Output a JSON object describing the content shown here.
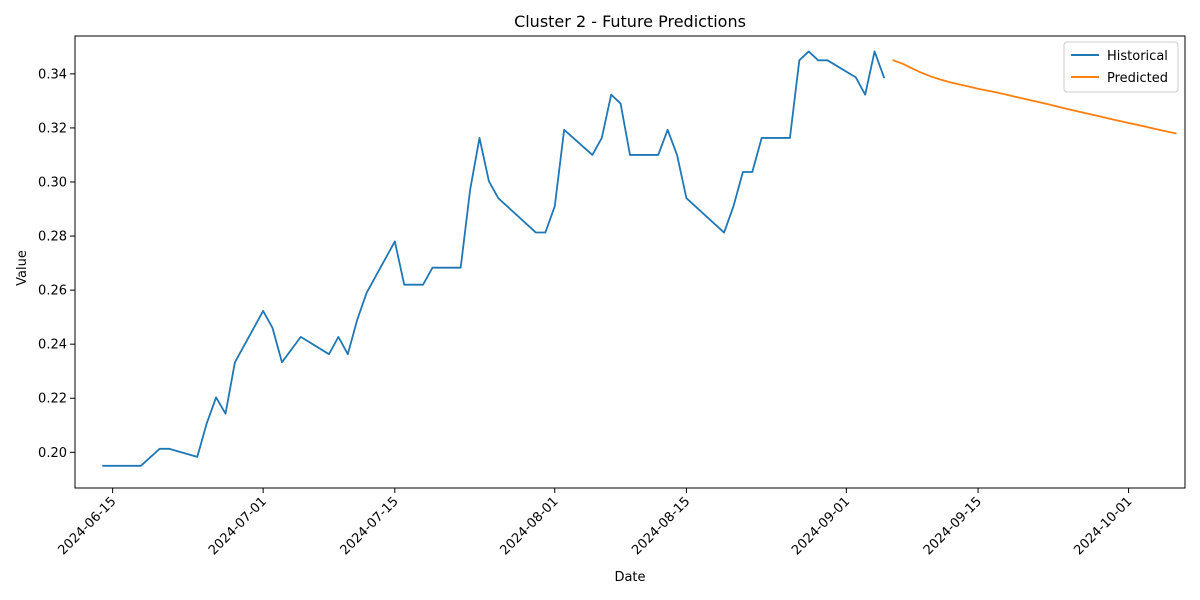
{
  "chart_data": {
    "type": "line",
    "title": "Cluster 2 - Future Predictions",
    "xlabel": "Date",
    "ylabel": "Value",
    "xlim": [
      "2024-06-11",
      "2024-10-07"
    ],
    "ylim": [
      0.1868,
      0.354
    ],
    "x_ticks": [
      "2024-06-15",
      "2024-07-01",
      "2024-07-15",
      "2024-08-01",
      "2024-08-15",
      "2024-09-01",
      "2024-09-15",
      "2024-10-01"
    ],
    "y_ticks": [
      0.2,
      0.22,
      0.24,
      0.26,
      0.28,
      0.3,
      0.32,
      0.34
    ],
    "y_tick_labels": [
      "0.20",
      "0.22",
      "0.24",
      "0.26",
      "0.28",
      "0.30",
      "0.32",
      "0.34"
    ],
    "legend_position": "top-right",
    "series": [
      {
        "name": "Historical",
        "color": "#1f77b4",
        "points": [
          [
            "2024-06-14",
            0.195
          ],
          [
            "2024-06-18",
            0.195
          ],
          [
            "2024-06-20",
            0.2013
          ],
          [
            "2024-06-21",
            0.2013
          ],
          [
            "2024-06-24",
            0.1983
          ],
          [
            "2024-06-25",
            0.2107
          ],
          [
            "2024-06-26",
            0.2203
          ],
          [
            "2024-06-27",
            0.2143
          ],
          [
            "2024-06-28",
            0.2333
          ],
          [
            "2024-07-01",
            0.2523
          ],
          [
            "2024-07-02",
            0.246
          ],
          [
            "2024-07-03",
            0.2333
          ],
          [
            "2024-07-05",
            0.2427
          ],
          [
            "2024-07-08",
            0.2363
          ],
          [
            "2024-07-09",
            0.2427
          ],
          [
            "2024-07-10",
            0.2363
          ],
          [
            "2024-07-11",
            0.249
          ],
          [
            "2024-07-12",
            0.259
          ],
          [
            "2024-07-15",
            0.278
          ],
          [
            "2024-07-16",
            0.262
          ],
          [
            "2024-07-18",
            0.262
          ],
          [
            "2024-07-19",
            0.2683
          ],
          [
            "2024-07-22",
            0.2683
          ],
          [
            "2024-07-23",
            0.297
          ],
          [
            "2024-07-24",
            0.3163
          ],
          [
            "2024-07-25",
            0.3003
          ],
          [
            "2024-07-26",
            0.294
          ],
          [
            "2024-07-30",
            0.2813
          ],
          [
            "2024-07-31",
            0.2813
          ],
          [
            "2024-08-01",
            0.291
          ],
          [
            "2024-08-02",
            0.3193
          ],
          [
            "2024-08-05",
            0.31
          ],
          [
            "2024-08-06",
            0.3163
          ],
          [
            "2024-08-07",
            0.3323
          ],
          [
            "2024-08-08",
            0.329
          ],
          [
            "2024-08-09",
            0.31
          ],
          [
            "2024-08-12",
            0.31
          ],
          [
            "2024-08-13",
            0.3193
          ],
          [
            "2024-08-14",
            0.31
          ],
          [
            "2024-08-15",
            0.294
          ],
          [
            "2024-08-19",
            0.2813
          ],
          [
            "2024-08-20",
            0.291
          ],
          [
            "2024-08-21",
            0.3037
          ],
          [
            "2024-08-22",
            0.3037
          ],
          [
            "2024-08-23",
            0.3163
          ],
          [
            "2024-08-26",
            0.3163
          ],
          [
            "2024-08-27",
            0.345
          ],
          [
            "2024-08-28",
            0.3483
          ],
          [
            "2024-08-29",
            0.345
          ],
          [
            "2024-08-30",
            0.345
          ],
          [
            "2024-09-02",
            0.3387
          ],
          [
            "2024-09-03",
            0.3323
          ],
          [
            "2024-09-04",
            0.3483
          ],
          [
            "2024-09-05",
            0.3387
          ]
        ]
      },
      {
        "name": "Predicted",
        "color": "#ff7f0e",
        "points": [
          [
            "2024-09-06",
            0.345
          ],
          [
            "2024-09-07",
            0.3437
          ],
          [
            "2024-09-08",
            0.342
          ],
          [
            "2024-09-09",
            0.3404
          ],
          [
            "2024-09-10",
            0.339
          ],
          [
            "2024-09-11",
            0.3379
          ],
          [
            "2024-09-12",
            0.3369
          ],
          [
            "2024-09-13",
            0.3361
          ],
          [
            "2024-09-14",
            0.3353
          ],
          [
            "2024-09-15",
            0.3345
          ],
          [
            "2024-09-16",
            0.3338
          ],
          [
            "2024-09-17",
            0.3331
          ],
          [
            "2024-09-18",
            0.3323
          ],
          [
            "2024-09-19",
            0.3315
          ],
          [
            "2024-09-20",
            0.3307
          ],
          [
            "2024-09-21",
            0.3299
          ],
          [
            "2024-09-22",
            0.3291
          ],
          [
            "2024-09-23",
            0.3283
          ],
          [
            "2024-09-24",
            0.3274
          ],
          [
            "2024-09-25",
            0.3266
          ],
          [
            "2024-09-26",
            0.3258
          ],
          [
            "2024-09-27",
            0.325
          ],
          [
            "2024-09-28",
            0.3242
          ],
          [
            "2024-09-29",
            0.3234
          ],
          [
            "2024-09-30",
            0.3226
          ],
          [
            "2024-10-01",
            0.3218
          ],
          [
            "2024-10-02",
            0.3211
          ],
          [
            "2024-10-03",
            0.3203
          ],
          [
            "2024-10-04",
            0.3195
          ],
          [
            "2024-10-05",
            0.3187
          ],
          [
            "2024-10-06",
            0.318
          ]
        ]
      }
    ]
  }
}
